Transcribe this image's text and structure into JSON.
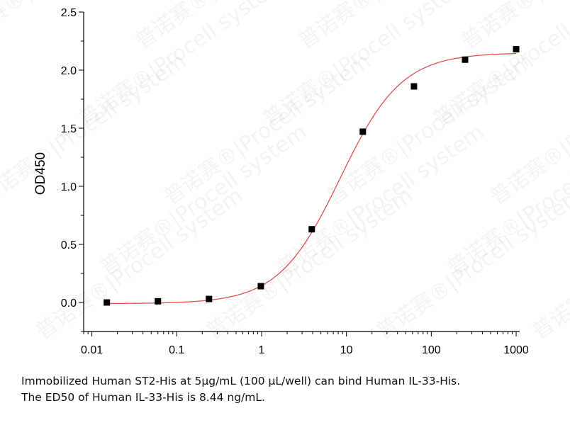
{
  "chart_data": {
    "type": "scatter",
    "xlabel": "",
    "ylabel": "OD450",
    "x_scale": "log",
    "xlim": [
      0.008,
      1100
    ],
    "ylim": [
      -0.25,
      2.5
    ],
    "x_ticks": [
      0.01,
      0.1,
      1,
      10,
      100,
      1000
    ],
    "x_tick_labels": [
      "0.01",
      "0.1",
      "1",
      "10",
      "100",
      "1000"
    ],
    "y_ticks": [
      0.0,
      0.5,
      1.0,
      1.5,
      2.0,
      2.5
    ],
    "y_tick_labels": [
      "0.0",
      "0.5",
      "1.0",
      "1.5",
      "2.0",
      "2.5"
    ],
    "grid": false,
    "points": {
      "x": [
        0.015,
        0.06,
        0.24,
        0.98,
        3.9,
        15.6,
        62.5,
        250,
        1000
      ],
      "y": [
        0.0,
        0.01,
        0.03,
        0.14,
        0.63,
        1.47,
        1.86,
        2.09,
        2.18
      ]
    },
    "fit_curve": {
      "model": "4PL",
      "bottom": -0.01,
      "top": 2.15,
      "ec50": 8.44,
      "hill": 1.2
    },
    "colors": {
      "points": "#000000",
      "curve": "#e05050"
    }
  },
  "caption": {
    "line1": "Immobilized Human ST2-His at 5μg/mL (100 μL/well) can bind Human IL-33-His.",
    "line2": "The ED50 of Human IL-33-His is 8.44 ng/mL."
  },
  "watermark": {
    "text": "普诺赛®|Procell system"
  }
}
